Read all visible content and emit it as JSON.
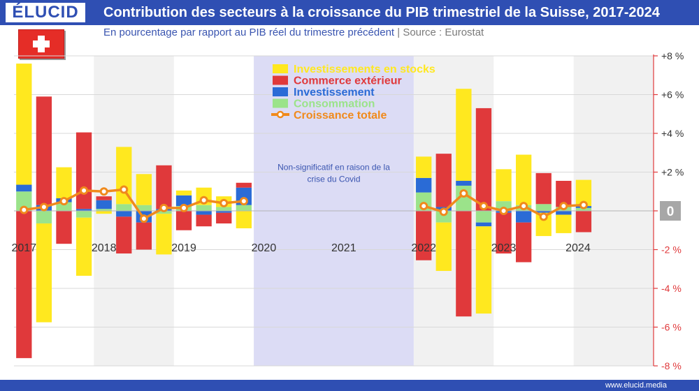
{
  "header": {
    "logo": "ÉLUCID",
    "title": "Contribution des secteurs à la croissance du PIB trimestriel de la Suisse, 2017-2024",
    "subtitle": "En pourcentage par rapport au PIB réel du trimestre précédent",
    "separator": "|",
    "source": "Source : Eurostat"
  },
  "footer": {
    "site": "www.elucid.media"
  },
  "colors": {
    "stocks": "#ffe81f",
    "commerce": "#e0393b",
    "investissement": "#2a6bd6",
    "consommation": "#9be38a",
    "croissance": "#f08a1c",
    "covid": "#dcdcf5",
    "banner": "#2f4fb3"
  },
  "chart_data": {
    "type": "bar",
    "stacked": true,
    "title": "Contribution des secteurs à la croissance du PIB trimestriel de la Suisse, 2017-2024",
    "ylim": [
      -8,
      8
    ],
    "yticks": [
      "+8 %",
      "+6 %",
      "+4 %",
      "+2 %",
      "0",
      "-2 %",
      "-4 %",
      "-6 %",
      "-8 %"
    ],
    "ytick_values": [
      8,
      6,
      4,
      2,
      0,
      -2,
      -4,
      -6,
      -8
    ],
    "years": [
      "2017",
      "2018",
      "2019",
      "2020",
      "2021",
      "2022",
      "2023",
      "2024"
    ],
    "year_start_index": [
      0,
      4,
      8,
      12,
      16,
      20,
      24,
      28
    ],
    "categories": [
      "2017T1",
      "2017T2",
      "2017T3",
      "2017T4",
      "2018T1",
      "2018T2",
      "2018T3",
      "2018T4",
      "2019T1",
      "2019T2",
      "2019T3",
      "2019T4",
      "2020T1",
      "2020T2",
      "2020T3",
      "2020T4",
      "2021T1",
      "2021T2",
      "2021T3",
      "2021T4",
      "2022T1",
      "2022T2",
      "2022T3",
      "2022T4",
      "2023T1",
      "2023T2",
      "2023T3",
      "2023T4",
      "2024T1"
    ],
    "series": [
      {
        "name": "Consommation",
        "key": "consommation",
        "values": [
          1.0,
          -0.65,
          0.45,
          -0.35,
          0.1,
          0.35,
          0.3,
          -0.15,
          0.25,
          0.3,
          0.2,
          0.3,
          null,
          null,
          null,
          null,
          null,
          null,
          null,
          null,
          0.95,
          -0.6,
          1.3,
          -0.6,
          0.5,
          0.3,
          0.35,
          0.2,
          0.15
        ]
      },
      {
        "name": "Investissement",
        "key": "investissement",
        "values": [
          0.35,
          0.3,
          0.2,
          0.1,
          0.45,
          -0.3,
          -0.6,
          0.1,
          0.55,
          -0.2,
          -0.1,
          0.9,
          null,
          null,
          null,
          null,
          null,
          null,
          null,
          null,
          0.75,
          0.2,
          0.25,
          -0.2,
          -0.1,
          -0.6,
          -0.1,
          -0.2,
          0.1
        ]
      },
      {
        "name": "Commerce extérieur",
        "key": "commerce",
        "values": [
          -7.6,
          5.6,
          -1.7,
          3.95,
          0.2,
          -1.9,
          -1.4,
          2.25,
          -1.0,
          -0.6,
          -0.55,
          0.25,
          null,
          null,
          null,
          null,
          null,
          null,
          null,
          null,
          -2.55,
          2.75,
          -5.45,
          5.3,
          -2.1,
          -2.05,
          1.6,
          1.35,
          -1.1
        ]
      },
      {
        "name": "Investissements en stocks",
        "key": "stocks",
        "values": [
          6.25,
          -5.1,
          1.6,
          -3.0,
          -0.15,
          2.95,
          1.6,
          -2.1,
          0.25,
          0.9,
          0.55,
          -0.9,
          null,
          null,
          null,
          null,
          null,
          null,
          null,
          null,
          1.1,
          -2.5,
          4.75,
          -4.5,
          1.65,
          2.6,
          -1.2,
          -0.95,
          1.35
        ]
      }
    ],
    "total": {
      "name": "Croissance totale",
      "key": "croissance",
      "values": [
        0.05,
        0.2,
        0.5,
        1.05,
        1.0,
        1.1,
        -0.4,
        0.15,
        0.15,
        0.55,
        0.4,
        0.5,
        null,
        null,
        null,
        null,
        null,
        null,
        null,
        null,
        0.25,
        -0.05,
        0.9,
        0.25,
        0.0,
        0.25,
        -0.3,
        0.25,
        0.3
      ]
    },
    "legend": [
      {
        "label": "Investissements en stocks",
        "key": "stocks",
        "kind": "bar"
      },
      {
        "label": "Commerce extérieur",
        "key": "commerce",
        "kind": "bar"
      },
      {
        "label": "Investissement",
        "key": "investissement",
        "kind": "bar"
      },
      {
        "label": "Consommation",
        "key": "consommation",
        "kind": "bar"
      },
      {
        "label": "Croissance totale",
        "key": "croissance",
        "kind": "line"
      }
    ],
    "covid_note": "Non-significatif en raison de la crise du Covid",
    "covid_note_lines": [
      "Non-significatif en raison de la",
      "crise du Covid"
    ],
    "covid_range": [
      "2020T1",
      "2021T4"
    ],
    "zero_badge": "0"
  }
}
